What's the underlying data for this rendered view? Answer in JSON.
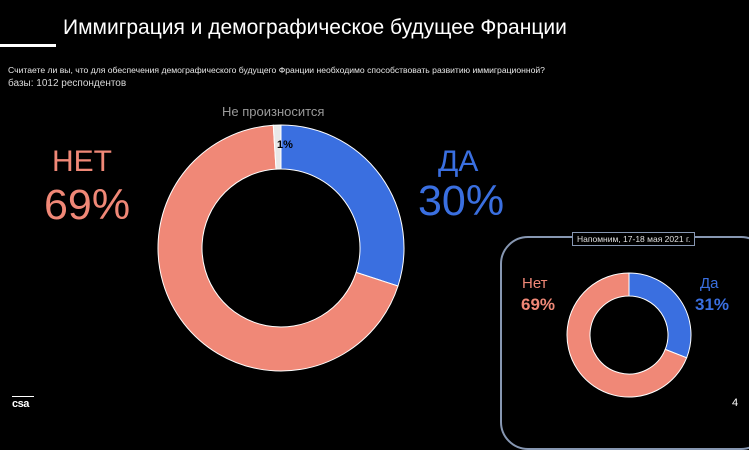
{
  "header": {
    "title": "Иммиграция и демографическое будущее Франции",
    "question": "Считаете ли вы, что для обеспечения демографического будущего Франции необходимо способствовать развитию иммиграционной?",
    "base": "базы: 1012 респондентов"
  },
  "colors": {
    "no": "#f08877",
    "yes": "#3a6fe0",
    "na": "#e8e8e8",
    "na_label": "#9a9a9a",
    "frame": "#8797b2"
  },
  "chart_data": [
    {
      "type": "pie",
      "variant": "donut",
      "title": "Иммиграция и демографическое будущее Франции",
      "slices": [
        {
          "label": "НЕТ",
          "value": 69,
          "display": "69%"
        },
        {
          "label": "ДА",
          "value": 30,
          "display": "30%"
        },
        {
          "label": "Не произносится",
          "value": 1,
          "display": "1%"
        }
      ]
    },
    {
      "type": "pie",
      "variant": "donut",
      "title": "Напомним, 17-18 мая 2021 г.",
      "slices": [
        {
          "label": "Нет",
          "value": 69,
          "display": "69%"
        },
        {
          "label": "Да",
          "value": 31,
          "display": "31%"
        }
      ]
    }
  ],
  "footer": {
    "logo": "csa",
    "page": "4"
  }
}
